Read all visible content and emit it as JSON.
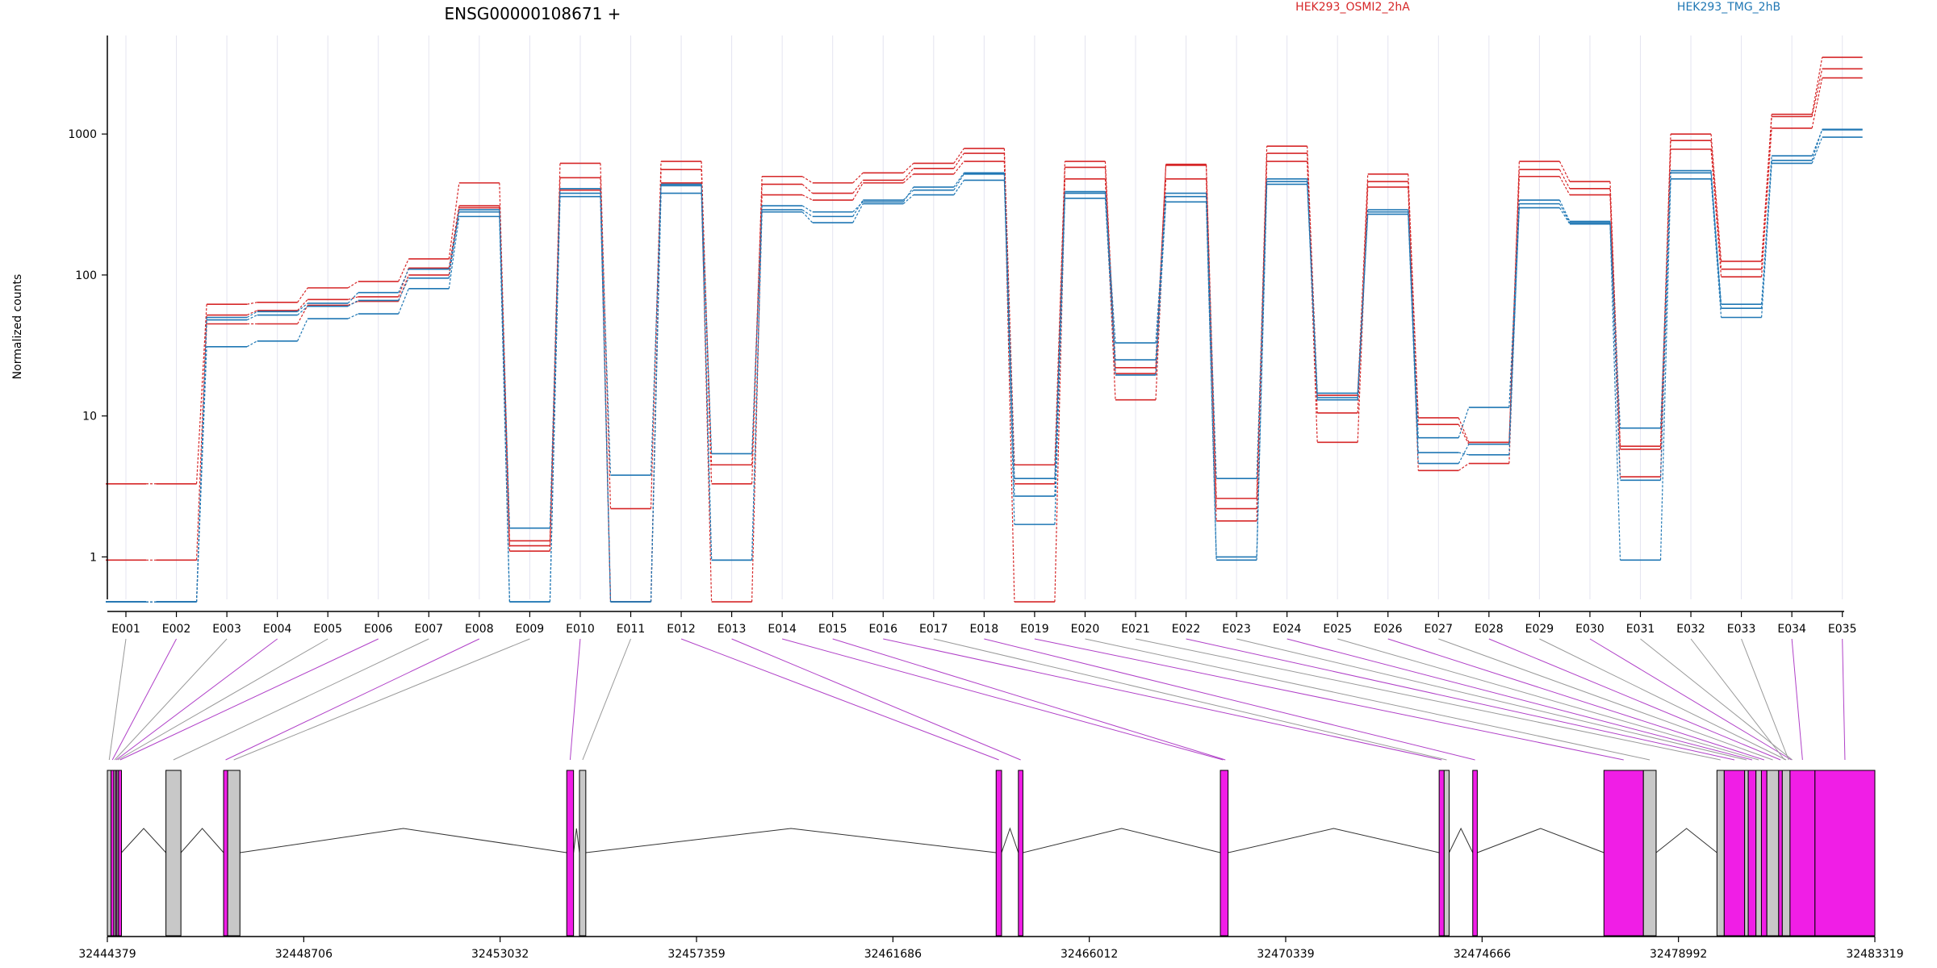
{
  "chart_data": {
    "type": "line",
    "title": "ENSG00000108671 +",
    "ylabel": "Normalized counts",
    "y_scale": "log",
    "ylim": [
      0.5,
      5000
    ],
    "yticks": [
      1,
      10,
      100,
      1000
    ],
    "ytick_labels": [
      "1",
      "10",
      "100",
      "1000"
    ],
    "categories": [
      "E001",
      "E002",
      "E003",
      "E004",
      "E005",
      "E006",
      "E007",
      "E008",
      "E009",
      "E010",
      "E011",
      "E012",
      "E013",
      "E014",
      "E015",
      "E016",
      "E017",
      "E018",
      "E019",
      "E020",
      "E021",
      "E022",
      "E023",
      "E024",
      "E025",
      "E026",
      "E027",
      "E028",
      "E029",
      "E030",
      "E031",
      "E032",
      "E033",
      "E034",
      "E035"
    ],
    "legend": [
      {
        "label": "HEK293_OSMI2_2hA",
        "color": "#d62728"
      },
      {
        "label": "HEK293_TMG_2hB",
        "color": "#1f77b4"
      }
    ],
    "series": [
      {
        "group": 0,
        "values": [
          3.3,
          3.3,
          62,
          64,
          81,
          90,
          130,
          450,
          1.3,
          620,
          2.2,
          640,
          3.3,
          500,
          450,
          530,
          620,
          790,
          4.5,
          640,
          22,
          610,
          2.6,
          820,
          14,
          520,
          9.7,
          6.5,
          640,
          460,
          6.1,
          1000,
          125,
          1380,
          3500
        ]
      },
      {
        "group": 0,
        "values": [
          0.95,
          0.95,
          52,
          56,
          67,
          70,
          112,
          310,
          1.1,
          490,
          0.48,
          560,
          4.5,
          440,
          380,
          470,
          570,
          730,
          3.3,
          580,
          20,
          600,
          2.2,
          730,
          10.5,
          460,
          8.7,
          6.3,
          560,
          410,
          5.8,
          900,
          110,
          1330,
          2900
        ]
      },
      {
        "group": 0,
        "values": [
          0.48,
          0.48,
          45,
          45,
          61,
          65,
          100,
          300,
          1.2,
          400,
          0.48,
          450,
          0.48,
          370,
          340,
          450,
          520,
          640,
          0.48,
          480,
          13,
          480,
          1.8,
          640,
          6.5,
          420,
          4.1,
          4.6,
          500,
          370,
          3.7,
          780,
          97,
          1100,
          2500
        ]
      },
      {
        "group": 1,
        "values": [
          0.48,
          0.48,
          48,
          52,
          60,
          66,
          95,
          290,
          1.6,
          410,
          3.8,
          440,
          5.4,
          310,
          280,
          330,
          420,
          530,
          3.6,
          390,
          33,
          380,
          3.6,
          480,
          14.5,
          290,
          7,
          11.5,
          340,
          240,
          8.2,
          550,
          62,
          700,
          1070
        ]
      },
      {
        "group": 1,
        "values": [
          0.48,
          0.48,
          50,
          55,
          63,
          75,
          110,
          280,
          0.48,
          380,
          0.48,
          430,
          0.95,
          290,
          260,
          340,
          400,
          520,
          2.7,
          380,
          25,
          360,
          1,
          460,
          13.5,
          280,
          5.5,
          5.3,
          320,
          235,
          3.5,
          530,
          58,
          650,
          1080
        ]
      },
      {
        "group": 1,
        "values": [
          0.48,
          0.48,
          31,
          34,
          49,
          53,
          80,
          260,
          0.48,
          360,
          0.48,
          380,
          0.95,
          280,
          235,
          320,
          370,
          470,
          1.7,
          350,
          19.5,
          330,
          0.95,
          440,
          13,
          270,
          4.6,
          6.3,
          300,
          230,
          0.95,
          480,
          50,
          620,
          950
        ]
      }
    ],
    "gene_model": {
      "xticks": [
        32444379,
        32448706,
        32453032,
        32457359,
        32461686,
        32466012,
        32470339,
        32474666,
        32478992,
        32483319
      ],
      "xtick_labels": [
        "32444379",
        "32448706",
        "32453032",
        "32457359",
        "32461686",
        "32466012",
        "32470339",
        "32474666",
        "32478992",
        "32483319"
      ],
      "xlim": [
        32444379,
        32483319
      ],
      "exons": [
        {
          "start": 32444379,
          "end": 32444460,
          "highlight": false
        },
        {
          "start": 32444460,
          "end": 32444520,
          "highlight": true
        },
        {
          "start": 32444520,
          "end": 32444560,
          "highlight": false
        },
        {
          "start": 32444560,
          "end": 32444590,
          "highlight": true
        },
        {
          "start": 32444590,
          "end": 32444625,
          "highlight": false
        },
        {
          "start": 32444625,
          "end": 32444690,
          "highlight": true
        },
        {
          "start": 32445670,
          "end": 32446000,
          "highlight": false
        },
        {
          "start": 32446940,
          "end": 32447030,
          "highlight": true
        },
        {
          "start": 32447030,
          "end": 32447300,
          "highlight": false
        },
        {
          "start": 32454500,
          "end": 32454650,
          "highlight": true
        },
        {
          "start": 32454780,
          "end": 32454920,
          "highlight": false
        },
        {
          "start": 32463960,
          "end": 32464080,
          "highlight": true
        },
        {
          "start": 32464450,
          "end": 32464550,
          "highlight": true
        },
        {
          "start": 32468900,
          "end": 32469070,
          "highlight": true
        },
        {
          "start": 32473720,
          "end": 32473830,
          "highlight": true
        },
        {
          "start": 32473830,
          "end": 32473940,
          "highlight": false
        },
        {
          "start": 32474460,
          "end": 32474560,
          "highlight": true
        },
        {
          "start": 32477350,
          "end": 32478220,
          "highlight": true
        },
        {
          "start": 32478220,
          "end": 32478500,
          "highlight": false
        },
        {
          "start": 32479840,
          "end": 32480000,
          "highlight": false
        },
        {
          "start": 32480000,
          "end": 32480450,
          "highlight": true
        },
        {
          "start": 32480450,
          "end": 32480530,
          "highlight": false
        },
        {
          "start": 32480530,
          "end": 32480700,
          "highlight": true
        },
        {
          "start": 32480700,
          "end": 32480820,
          "highlight": false
        },
        {
          "start": 32480820,
          "end": 32480940,
          "highlight": true
        },
        {
          "start": 32480940,
          "end": 32481200,
          "highlight": false
        },
        {
          "start": 32481200,
          "end": 32481280,
          "highlight": true
        },
        {
          "start": 32481280,
          "end": 32481450,
          "highlight": false
        },
        {
          "start": 32481450,
          "end": 32482000,
          "highlight": true
        },
        {
          "start": 32482000,
          "end": 32483319,
          "highlight": true
        }
      ],
      "introns": [
        {
          "start": 32444690,
          "end": 32445670
        },
        {
          "start": 32446000,
          "end": 32446940
        },
        {
          "start": 32447300,
          "end": 32454500
        },
        {
          "start": 32454650,
          "end": 32454780
        },
        {
          "start": 32454920,
          "end": 32463960
        },
        {
          "start": 32464080,
          "end": 32464450
        },
        {
          "start": 32464550,
          "end": 32468900
        },
        {
          "start": 32469070,
          "end": 32473720
        },
        {
          "start": 32473940,
          "end": 32474460
        },
        {
          "start": 32474560,
          "end": 32477350
        },
        {
          "start": 32478500,
          "end": 32479840
        }
      ],
      "links": [
        {
          "pos": 32444420,
          "highlight": false
        },
        {
          "pos": 32444490,
          "highlight": true
        },
        {
          "pos": 32444540,
          "highlight": false
        },
        {
          "pos": 32444575,
          "highlight": true
        },
        {
          "pos": 32444610,
          "highlight": false
        },
        {
          "pos": 32444660,
          "highlight": true
        },
        {
          "pos": 32445835,
          "highlight": false
        },
        {
          "pos": 32446985,
          "highlight": true
        },
        {
          "pos": 32447165,
          "highlight": false
        },
        {
          "pos": 32454575,
          "highlight": true
        },
        {
          "pos": 32454850,
          "highlight": false
        },
        {
          "pos": 32464020,
          "highlight": true
        },
        {
          "pos": 32464500,
          "highlight": true
        },
        {
          "pos": 32468960,
          "highlight": true
        },
        {
          "pos": 32469010,
          "highlight": true
        },
        {
          "pos": 32473775,
          "highlight": true
        },
        {
          "pos": 32473885,
          "highlight": false
        },
        {
          "pos": 32474510,
          "highlight": true
        },
        {
          "pos": 32477785,
          "highlight": true
        },
        {
          "pos": 32478360,
          "highlight": false
        },
        {
          "pos": 32479920,
          "highlight": false
        },
        {
          "pos": 32480225,
          "highlight": true
        },
        {
          "pos": 32480490,
          "highlight": false
        },
        {
          "pos": 32480615,
          "highlight": true
        },
        {
          "pos": 32480760,
          "highlight": false
        },
        {
          "pos": 32480880,
          "highlight": true
        },
        {
          "pos": 32481070,
          "highlight": false
        },
        {
          "pos": 32481240,
          "highlight": true
        },
        {
          "pos": 32481365,
          "highlight": false
        },
        {
          "pos": 32481480,
          "highlight": true
        },
        {
          "pos": 32481500,
          "highlight": false
        },
        {
          "pos": 32481330,
          "highlight": false
        },
        {
          "pos": 32481420,
          "highlight": false
        },
        {
          "pos": 32481725,
          "highlight": true
        },
        {
          "pos": 32482660,
          "highlight": true
        }
      ]
    }
  },
  "colors": {
    "group0": "#d62728",
    "group1": "#1f77b4",
    "highlight_exon": "#f01ee6",
    "plain_exon": "#c8c8c8",
    "highlight_link": "#b040c8",
    "plain_link": "#999999",
    "grid": "#e4e4f0"
  }
}
